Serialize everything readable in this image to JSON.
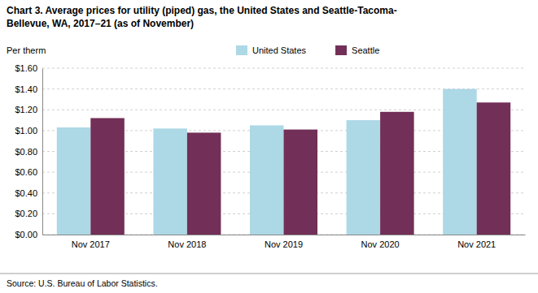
{
  "chart_data": {
    "type": "bar",
    "title": [
      "Chart 3. Average prices for utility (piped) gas, the United States and Seattle-Tacoma-",
      "Bellevue, WA, 2017–21 (as of November)"
    ],
    "ylabel": "Per therm",
    "source": "Source: U.S. Bureau of Labor Statistics.",
    "categories": [
      "Nov 2017",
      "Nov 2018",
      "Nov 2019",
      "Nov 2020",
      "Nov 2021"
    ],
    "series": [
      {
        "name": "United States",
        "color": "#add8e6",
        "values": [
          1.03,
          1.02,
          1.05,
          1.1,
          1.4
        ]
      },
      {
        "name": "Seattle",
        "color": "#722F57",
        "values": [
          1.12,
          0.98,
          1.01,
          1.18,
          1.27
        ]
      }
    ],
    "ylim": [
      0,
      1.6
    ],
    "yticks": [
      {
        "value": 0.0,
        "label": "$0.00"
      },
      {
        "value": 0.2,
        "label": "$0.20"
      },
      {
        "value": 0.4,
        "label": "$0.40"
      },
      {
        "value": 0.6,
        "label": "$0.60"
      },
      {
        "value": 0.8,
        "label": "$0.80"
      },
      {
        "value": 1.0,
        "label": "$1.00"
      },
      {
        "value": 1.2,
        "label": "$1.20"
      },
      {
        "value": 1.4,
        "label": "$1.40"
      },
      {
        "value": 1.6,
        "label": "$1.60"
      }
    ],
    "grid": true,
    "legend": "top"
  }
}
